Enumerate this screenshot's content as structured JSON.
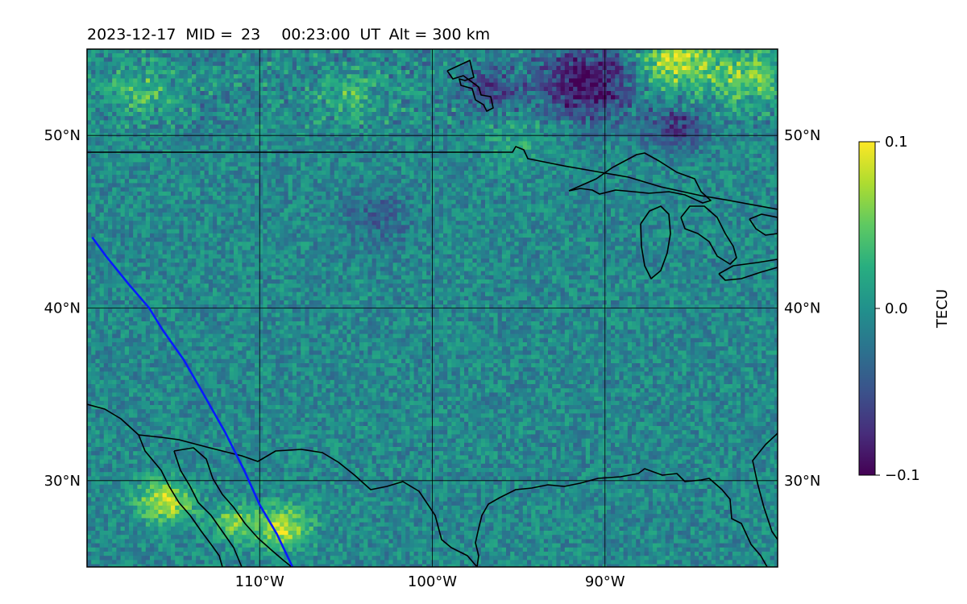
{
  "title": {
    "date": "2023-12-17",
    "mid_label": "MID =",
    "mid_value": "23",
    "time": "00:23:00",
    "time_unit": "UT",
    "alt_label": "Alt = 300 km"
  },
  "map": {
    "lon_range": [
      -120,
      -80
    ],
    "lat_range": [
      25,
      55
    ],
    "lon_ticks": [
      {
        "value": -110,
        "label": "110°W"
      },
      {
        "value": -100,
        "label": "100°W"
      },
      {
        "value": -90,
        "label": "90°W"
      }
    ],
    "lat_ticks": [
      {
        "value": 50,
        "label": "50°N"
      },
      {
        "value": 40,
        "label": "40°N"
      },
      {
        "value": 30,
        "label": "30°N"
      }
    ],
    "gridlines": true,
    "colormap": "viridis",
    "path_color": "#0a1aff",
    "path_lonlat": [
      [
        -119.7,
        44.1
      ],
      [
        -118.9,
        43.0
      ],
      [
        -117.6,
        41.4
      ],
      [
        -116.4,
        40.0
      ],
      [
        -115.6,
        38.7
      ],
      [
        -114.4,
        37.0
      ],
      [
        -113.3,
        35.1
      ],
      [
        -112.0,
        32.8
      ],
      [
        -110.9,
        30.6
      ],
      [
        -110.0,
        28.6
      ],
      [
        -109.0,
        26.9
      ],
      [
        -108.1,
        25.0
      ]
    ]
  },
  "colorbar": {
    "label": "TECU",
    "min": -0.1,
    "max": 0.1,
    "ticks": [
      {
        "value": 0.1,
        "label": "0.1"
      },
      {
        "value": 0.0,
        "label": "0.0"
      },
      {
        "value": -0.1,
        "label": "−0.1"
      }
    ]
  }
}
